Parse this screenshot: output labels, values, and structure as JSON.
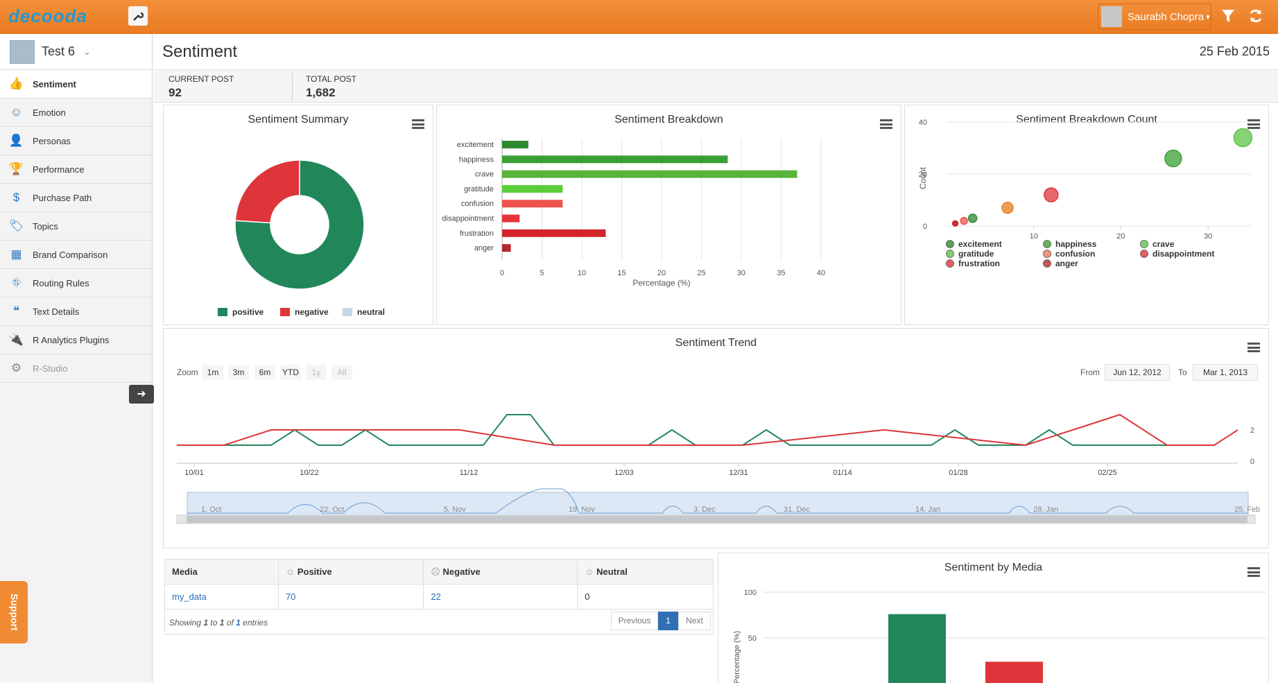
{
  "app": {
    "logo": "decooda",
    "user": "Saurabh Chopra",
    "user_caret": "▾"
  },
  "sidebar": {
    "project": "Test 6",
    "items": [
      {
        "label": "Sentiment",
        "icon": "thumbs-up-icon",
        "glyph": "👍"
      },
      {
        "label": "Emotion",
        "icon": "smiley-icon",
        "glyph": "☺"
      },
      {
        "label": "Personas",
        "icon": "person-icon",
        "glyph": "👤"
      },
      {
        "label": "Performance",
        "icon": "trophy-icon",
        "glyph": "🏆"
      },
      {
        "label": "Purchase Path",
        "icon": "dollar-icon",
        "glyph": "$"
      },
      {
        "label": "Topics",
        "icon": "tags-icon",
        "glyph": "🏷"
      },
      {
        "label": "Brand Comparison",
        "icon": "cubes-icon",
        "glyph": "▦"
      },
      {
        "label": "Routing Rules",
        "icon": "road-icon",
        "glyph": "⛗"
      },
      {
        "label": "Text Details",
        "icon": "quote-icon",
        "glyph": "❝"
      },
      {
        "label": "R Analytics Plugins",
        "icon": "plug-icon",
        "glyph": "🔌"
      },
      {
        "label": "R-Studio",
        "icon": "gear-icon",
        "glyph": "⚙"
      }
    ],
    "support": "Support"
  },
  "header": {
    "title": "Sentiment",
    "date": "25 Feb 2015"
  },
  "stats": {
    "current_label": "CURRENT POST",
    "current_value": "92",
    "total_label": "TOTAL POST",
    "total_value": "1,682"
  },
  "colors": {
    "positive": "#21875a",
    "negative": "#dd3539",
    "neutral": "#c7d7e2",
    "accent": "#ee8530"
  },
  "summary": {
    "title": "Sentiment Summary",
    "chart_data": {
      "type": "pie",
      "donut": true,
      "slices": [
        {
          "name": "positive",
          "value": 76
        },
        {
          "name": "negative",
          "value": 24
        },
        {
          "name": "neutral",
          "value": 0
        }
      ]
    },
    "legend": [
      "positive",
      "negative",
      "neutral"
    ]
  },
  "breakdown": {
    "title": "Sentiment Breakdown",
    "chart_data": {
      "type": "bar",
      "orientation": "horizontal",
      "categories": [
        "excitement",
        "happiness",
        "crave",
        "gratitude",
        "confusion",
        "disappointment",
        "frustration",
        "anger"
      ],
      "values": [
        3.3,
        28.3,
        37.0,
        7.6,
        7.6,
        2.2,
        13.0,
        1.1
      ],
      "colors": [
        "#2e8a30",
        "#3aa036",
        "#58b43a",
        "#58cf38",
        "#ee524d",
        "#e2353a",
        "#d3242c",
        "#b22b2d"
      ],
      "xlabel": "Percentage (%)",
      "xlim": [
        0,
        40
      ],
      "xticks": [
        "0",
        "5",
        "10",
        "15",
        "20",
        "25",
        "30",
        "35",
        "40"
      ]
    }
  },
  "count": {
    "title": "Sentiment Breakdown Count",
    "chart_data": {
      "type": "scatter",
      "bubble": true,
      "ylabel": "Count",
      "xlim": [
        0,
        35
      ],
      "ylim": [
        0,
        40
      ],
      "xticks": [
        "10",
        "20",
        "30"
      ],
      "yticks": [
        "0",
        "20",
        "40"
      ],
      "points": [
        {
          "name": "excitement",
          "x": 3,
          "y": 3,
          "r": 6,
          "color": "#2e8a30"
        },
        {
          "name": "happiness",
          "x": 26,
          "y": 26,
          "r": 12,
          "color": "#3aa036"
        },
        {
          "name": "crave",
          "x": 34,
          "y": 34,
          "r": 13,
          "color": "#5ec44a"
        },
        {
          "name": "gratitude",
          "x": 7,
          "y": 7,
          "r": 8,
          "color": "#e67e22"
        },
        {
          "name": "confusion",
          "x": 2,
          "y": 2,
          "r": 5,
          "color": "#ee524d"
        },
        {
          "name": "disappointment",
          "x": 1,
          "y": 1,
          "r": 4,
          "color": "#e2353a"
        },
        {
          "name": "frustration",
          "x": 12,
          "y": 12,
          "r": 10,
          "color": "#dd3539"
        },
        {
          "name": "anger",
          "x": 1,
          "y": 1,
          "r": 3,
          "color": "#b22b2d"
        }
      ],
      "legend": [
        {
          "name": "excitement",
          "color": "#2e8a30"
        },
        {
          "name": "happiness",
          "color": "#3aa036"
        },
        {
          "name": "crave",
          "color": "#5ec44a"
        },
        {
          "name": "gratitude",
          "color": "#5ec44a"
        },
        {
          "name": "confusion",
          "color": "#ee7a5d"
        },
        {
          "name": "disappointment",
          "color": "#e2353a"
        },
        {
          "name": "frustration",
          "color": "#dd3539"
        },
        {
          "name": "anger",
          "color": "#b22b2d"
        }
      ]
    }
  },
  "trend": {
    "title": "Sentiment Trend",
    "zoom_label": "Zoom",
    "zoom_buttons": [
      "1m",
      "3m",
      "6m",
      "YTD",
      "1y",
      "All"
    ],
    "from_label": "From",
    "from_value": "Jun 12, 2012",
    "to_label": "To",
    "to_value": "Mar 1, 2013",
    "chart_data": {
      "type": "line",
      "ylim": [
        0,
        2
      ],
      "yticks": [
        "0",
        "2"
      ],
      "xticks": [
        "10/01",
        "10/22",
        "11/12",
        "12/03",
        "12/31",
        "01/14",
        "01/28",
        "02/25"
      ],
      "series": [
        {
          "color": "#21875a",
          "points": [
            [
              0,
              1
            ],
            [
              4,
              1
            ],
            [
              5,
              2
            ],
            [
              6,
              1
            ],
            [
              7,
              1
            ],
            [
              8,
              2
            ],
            [
              9,
              1
            ],
            [
              13,
              1
            ],
            [
              14,
              3
            ],
            [
              15,
              3
            ],
            [
              16,
              1
            ],
            [
              20,
              1
            ],
            [
              21,
              2
            ],
            [
              22,
              1
            ],
            [
              24,
              1
            ],
            [
              25,
              2
            ],
            [
              26,
              1
            ],
            [
              32,
              1
            ],
            [
              33,
              2
            ],
            [
              34,
              1
            ],
            [
              36,
              1
            ],
            [
              37,
              2
            ],
            [
              38,
              1
            ],
            [
              44,
              1
            ]
          ]
        },
        {
          "color": "#dd3539",
          "points": [
            [
              0,
              1
            ],
            [
              2,
              1
            ],
            [
              4,
              2
            ],
            [
              12,
              2
            ],
            [
              16,
              1
            ],
            [
              24,
              1
            ],
            [
              30,
              2
            ],
            [
              36,
              1
            ],
            [
              38,
              2
            ],
            [
              40,
              3
            ],
            [
              42,
              1
            ],
            [
              44,
              1
            ],
            [
              45,
              2
            ]
          ]
        }
      ],
      "navigator_labels": [
        "1. Oct",
        "22. Oct",
        "5. Nov",
        "19. Nov",
        "3. Dec",
        "31. Dec",
        "14. Jan",
        "28. Jan",
        "25. Feb"
      ]
    }
  },
  "table": {
    "headers": [
      "Media",
      "Positive",
      "Negative",
      "Neutral"
    ],
    "rows": [
      [
        "my_data",
        "70",
        "22",
        "0"
      ]
    ],
    "info": {
      "pre": "Showing ",
      "from": "1",
      "mid1": " to ",
      "to": "1",
      "mid2": " of ",
      "total": "1",
      "post": " entries"
    },
    "prev": "Previous",
    "page": "1",
    "next": "Next"
  },
  "by_media": {
    "title": "Sentiment by Media",
    "chart_data": {
      "type": "bar",
      "categories": [
        "my_data"
      ],
      "ylabel": "Percentage (%)",
      "ylim": [
        0,
        100
      ],
      "yticks": [
        "50",
        "100"
      ],
      "series": [
        {
          "name": "positive",
          "values": [
            76
          ]
        },
        {
          "name": "negative",
          "values": [
            24
          ]
        }
      ]
    }
  }
}
